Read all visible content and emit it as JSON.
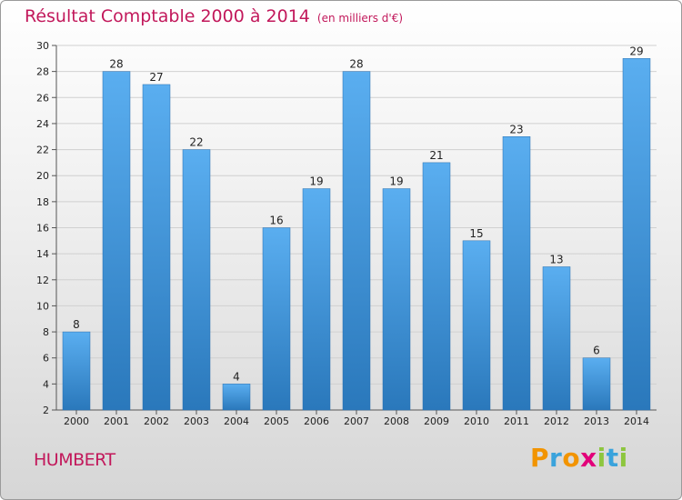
{
  "chart_data": {
    "type": "bar",
    "title": "Résultat Comptable 2000 à 2014",
    "subtitle": "(en milliers d'€)",
    "categories": [
      "2000",
      "2001",
      "2002",
      "2003",
      "2004",
      "2005",
      "2006",
      "2007",
      "2008",
      "2009",
      "2010",
      "2011",
      "2012",
      "2013",
      "2014"
    ],
    "values": [
      8,
      28,
      27,
      22,
      4,
      16,
      19,
      28,
      19,
      21,
      15,
      23,
      13,
      6,
      29
    ],
    "ylim": [
      2,
      30
    ],
    "yticks": [
      2,
      4,
      6,
      8,
      10,
      12,
      14,
      16,
      18,
      20,
      22,
      24,
      26,
      28,
      30
    ],
    "grid": true,
    "bar_color": "#3d8fd6"
  },
  "footer": {
    "commune": "HUMBERT",
    "logo": [
      "P",
      "r",
      "o",
      "x",
      "i",
      "t",
      "i"
    ],
    "logo_colors": [
      "#f29400",
      "#3aa3dc",
      "#f29400",
      "#e2007a",
      "#8dc63f",
      "#3aa3dc",
      "#8dc63f"
    ]
  }
}
